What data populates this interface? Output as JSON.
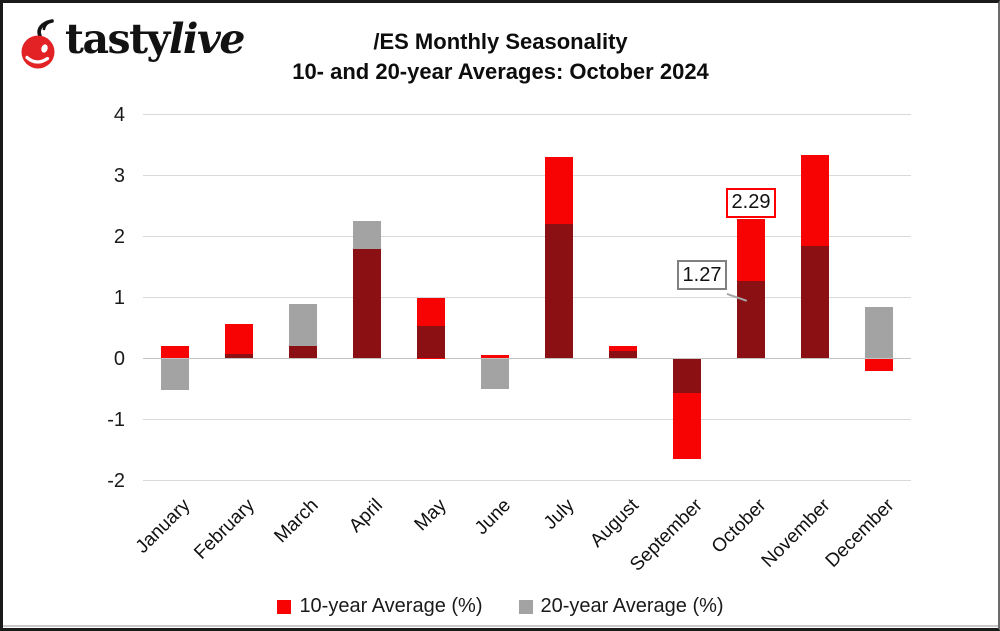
{
  "logo": {
    "brand_first": "tasty",
    "brand_second": "live",
    "icon": "cherry-icon",
    "cherry_color": "#e32226"
  },
  "title": {
    "line1": "/ES Monthly Seasonality",
    "line2": "10- and 20-year Averages: October 2024"
  },
  "chart_data": {
    "type": "bar",
    "title": "/ES Monthly Seasonality 10- and 20-year Averages: October 2024",
    "categories": [
      "January",
      "February",
      "March",
      "April",
      "May",
      "June",
      "July",
      "August",
      "September",
      "October",
      "November",
      "December"
    ],
    "series": [
      {
        "name": "10-year Average (%)",
        "color": "#f80303",
        "values": [
          0.2,
          0.57,
          0.21,
          1.8,
          1.0,
          0.06,
          3.31,
          0.21,
          -1.65,
          2.29,
          3.33,
          -0.2
        ]
      },
      {
        "name": "20-year Average (%)",
        "color": "#a3a3a3",
        "values": [
          -0.52,
          0.08,
          0.9,
          2.26,
          0.53,
          -0.5,
          2.2,
          0.13,
          -0.56,
          1.27,
          1.85,
          0.85
        ]
      }
    ],
    "overlap_color": "#8b1013",
    "bars_fully_overlapped": true,
    "xlabel": "",
    "ylabel": "",
    "ylim": [
      -2,
      4
    ],
    "yticks": [
      4,
      3,
      2,
      1,
      0,
      -1,
      -2
    ],
    "grid": true,
    "gridline_color": "#d9d9d9",
    "legend_position": "bottom",
    "annotations": [
      {
        "text": "2.29",
        "month": "October",
        "value": 2.29,
        "series": "10-year Average (%)",
        "placement": "above",
        "border_color": "#fe0000"
      },
      {
        "text": "1.27",
        "month": "October",
        "value": 1.27,
        "series": "20-year Average (%)",
        "placement": "left",
        "border_color": "#808080",
        "leader": true
      }
    ]
  }
}
